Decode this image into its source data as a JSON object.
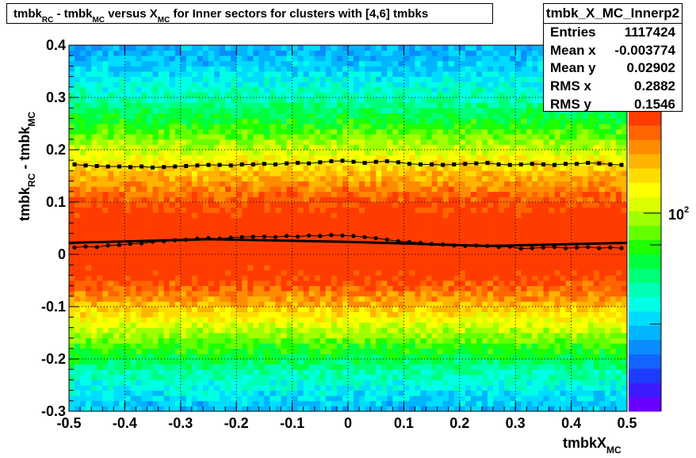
{
  "title": {
    "segments": [
      {
        "t": "tmbk",
        "s": "n"
      },
      {
        "t": "RC",
        "s": "sub"
      },
      {
        "t": " - tmbk",
        "s": "n"
      },
      {
        "t": "MC",
        "s": "sub"
      },
      {
        "t": " versus X",
        "s": "n"
      },
      {
        "t": "MC",
        "s": "sub"
      },
      {
        "t": " for Inner sectors for clusters with [4,6] tmbks",
        "s": "n"
      }
    ]
  },
  "stats": {
    "name": "tmbk_X_MC_Innerp2",
    "rows": [
      {
        "label": "Entries",
        "value": "1117424"
      },
      {
        "label": "Mean x",
        "value": "-0.003774"
      },
      {
        "label": "Mean y",
        "value": "0.02902"
      },
      {
        "label": "RMS x",
        "value": "0.2882"
      },
      {
        "label": "RMS y",
        "value": "0.1546"
      }
    ]
  },
  "colors": {
    "palette": [
      "#6a00ff",
      "#3c1cff",
      "#1e3cff",
      "#1464ff",
      "#0a8cff",
      "#00b4ff",
      "#00dcff",
      "#00ffe6",
      "#00ffb4",
      "#00ff78",
      "#00ff3c",
      "#1eff00",
      "#64ff00",
      "#a0ff00",
      "#dcff00",
      "#ffff00",
      "#ffdc00",
      "#ffb400",
      "#ff8c00",
      "#ff6400",
      "#ff3c00"
    ],
    "profile": "#000000"
  },
  "chart_data": {
    "type": "heatmap",
    "xlim": [
      -0.5,
      0.5
    ],
    "ylim": [
      -0.3,
      0.4
    ],
    "x_ticks": [
      "-0.5",
      "-0.4",
      "-0.3",
      "-0.2",
      "-0.1",
      "0",
      "0.1",
      "0.2",
      "0.3",
      "0.4",
      "0.5"
    ],
    "y_ticks": [
      "-0.3",
      "-0.2",
      "-0.1",
      "0",
      "0.1",
      "0.2",
      "0.3",
      "0.4"
    ],
    "xlabel_segments": [
      {
        "t": "tmbkX",
        "s": "n"
      },
      {
        "t": "MC",
        "s": "sub"
      }
    ],
    "ylabel_segments": [
      {
        "t": "tmbk",
        "s": "n"
      },
      {
        "t": "RC",
        "s": "sub"
      },
      {
        "t": " - tmbk",
        "s": "n"
      },
      {
        "t": "MC",
        "s": "sub"
      }
    ],
    "z_scale": "log",
    "z_label_base": "10",
    "z_label_exp": "2",
    "grid": true,
    "peak_y": 0.02,
    "upper_profile": {
      "x": [
        -0.49,
        -0.47,
        -0.45,
        -0.43,
        -0.41,
        -0.39,
        -0.37,
        -0.35,
        -0.33,
        -0.31,
        -0.29,
        -0.27,
        -0.25,
        -0.23,
        -0.21,
        -0.19,
        -0.17,
        -0.15,
        -0.13,
        -0.11,
        -0.09,
        -0.07,
        -0.05,
        -0.03,
        -0.01,
        0.01,
        0.03,
        0.05,
        0.07,
        0.09,
        0.11,
        0.13,
        0.15,
        0.17,
        0.19,
        0.21,
        0.23,
        0.25,
        0.27,
        0.29,
        0.31,
        0.33,
        0.35,
        0.37,
        0.39,
        0.41,
        0.43,
        0.45,
        0.47,
        0.49
      ],
      "y": [
        0.172,
        0.17,
        0.169,
        0.168,
        0.168,
        0.167,
        0.168,
        0.166,
        0.167,
        0.168,
        0.169,
        0.17,
        0.171,
        0.171,
        0.17,
        0.172,
        0.172,
        0.173,
        0.172,
        0.174,
        0.175,
        0.174,
        0.176,
        0.178,
        0.179,
        0.177,
        0.175,
        0.177,
        0.178,
        0.176,
        0.173,
        0.172,
        0.172,
        0.171,
        0.172,
        0.173,
        0.174,
        0.175,
        0.172,
        0.171,
        0.172,
        0.173,
        0.172,
        0.171,
        0.173,
        0.173,
        0.175,
        0.174,
        0.172,
        0.171
      ]
    },
    "center_profile": {
      "x": [
        -0.49,
        -0.47,
        -0.45,
        -0.43,
        -0.41,
        -0.39,
        -0.37,
        -0.35,
        -0.33,
        -0.31,
        -0.29,
        -0.27,
        -0.25,
        -0.23,
        -0.21,
        -0.19,
        -0.17,
        -0.15,
        -0.13,
        -0.11,
        -0.09,
        -0.07,
        -0.05,
        -0.03,
        -0.01,
        0.01,
        0.03,
        0.05,
        0.07,
        0.09,
        0.11,
        0.13,
        0.15,
        0.17,
        0.19,
        0.21,
        0.23,
        0.25,
        0.27,
        0.29,
        0.31,
        0.33,
        0.35,
        0.37,
        0.39,
        0.41,
        0.43,
        0.45,
        0.47,
        0.49
      ],
      "y": [
        0.013,
        0.015,
        0.014,
        0.017,
        0.018,
        0.02,
        0.021,
        0.024,
        0.025,
        0.027,
        0.028,
        0.03,
        0.031,
        0.03,
        0.032,
        0.033,
        0.034,
        0.034,
        0.033,
        0.035,
        0.034,
        0.036,
        0.035,
        0.037,
        0.036,
        0.035,
        0.033,
        0.031,
        0.028,
        0.025,
        0.024,
        0.022,
        0.02,
        0.019,
        0.017,
        0.016,
        0.017,
        0.016,
        0.014,
        0.015,
        0.011,
        0.012,
        0.013,
        0.014,
        0.012,
        0.013,
        0.014,
        0.012,
        0.013,
        0.012
      ]
    },
    "fit_line": {
      "x": [
        -0.5,
        -0.25,
        0.0,
        0.25,
        0.5
      ],
      "y": [
        0.022,
        0.029,
        0.024,
        0.016,
        0.022
      ]
    }
  }
}
